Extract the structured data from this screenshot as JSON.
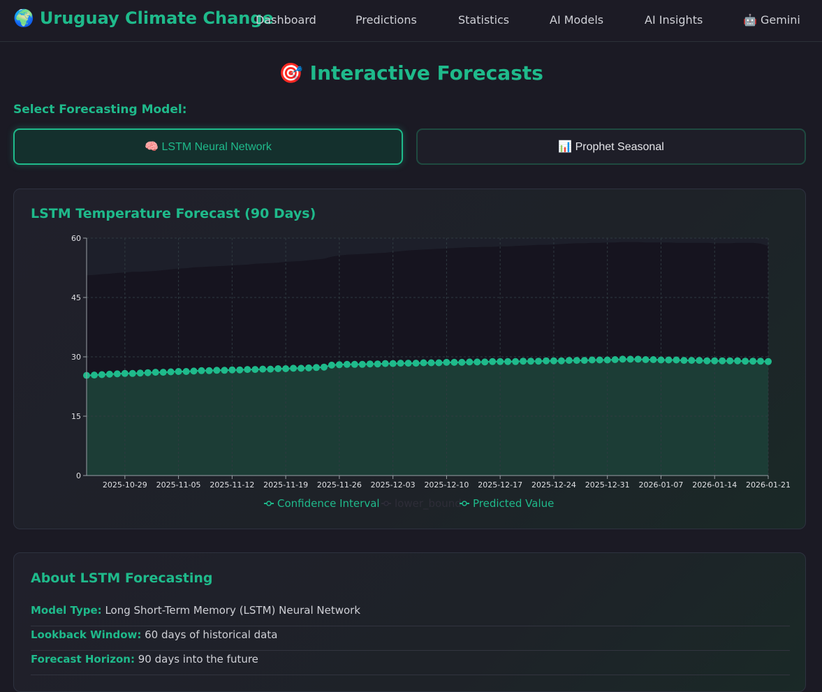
{
  "header": {
    "brand_icon": "🌍",
    "brand_title": "Uruguay Climate Change",
    "nav": [
      {
        "label": "Dashboard"
      },
      {
        "label": "Predictions"
      },
      {
        "label": "Statistics"
      },
      {
        "label": "AI Models"
      },
      {
        "label": "AI Insights"
      },
      {
        "label": "🤖 Gemini"
      }
    ]
  },
  "page": {
    "title": "🎯 Interactive Forecasts",
    "select_label": "Select Forecasting Model:",
    "models": [
      {
        "label": "🧠 LSTM Neural Network",
        "active": true
      },
      {
        "label": "📊 Prophet Seasonal",
        "active": false
      }
    ]
  },
  "chart_card": {
    "title": "LSTM Temperature Forecast (90 Days)"
  },
  "chart_data": {
    "type": "area",
    "title": "LSTM Temperature Forecast (90 Days)",
    "ylim": [
      0,
      60
    ],
    "yticks": [
      0,
      15,
      30,
      45,
      60
    ],
    "xticks": [
      "2025-10-29",
      "2025-11-05",
      "2025-11-12",
      "2025-11-19",
      "2025-11-26",
      "2025-12-03",
      "2025-12-10",
      "2025-12-17",
      "2025-12-24",
      "2025-12-31",
      "2026-01-07",
      "2026-01-14",
      "2026-01-21"
    ],
    "x_start": "2025-10-24",
    "x_end": "2026-01-21",
    "grid": true,
    "legend_position": "bottom",
    "legend": [
      {
        "name": "Confidence Interval",
        "color": "#1fba8b",
        "active": true
      },
      {
        "name": "lower_bound",
        "color": "#2a2a33",
        "active": false
      },
      {
        "name": "Predicted Value",
        "color": "#1fba8b",
        "active": true
      }
    ],
    "series": [
      {
        "name": "Confidence Interval",
        "values": [
          50.6,
          50.7,
          50.9,
          51.0,
          51.2,
          51.3,
          51.5,
          51.5,
          51.6,
          51.7,
          51.9,
          52.1,
          52.3,
          52.4,
          52.6,
          52.7,
          52.8,
          52.9,
          53.0,
          53.1,
          53.2,
          53.3,
          53.5,
          53.6,
          53.7,
          53.8,
          54.0,
          54.1,
          54.2,
          54.4,
          54.6,
          54.8,
          55.3,
          55.6,
          55.8,
          55.9,
          56.0,
          56.1,
          56.2,
          56.3,
          56.5,
          56.7,
          56.9,
          57.0,
          57.1,
          57.2,
          57.3,
          57.4,
          57.5,
          57.6,
          57.7,
          57.7,
          57.8,
          57.8,
          57.9,
          57.9,
          58.0,
          58.1,
          58.2,
          58.3,
          58.3,
          58.4,
          58.5,
          58.6,
          58.7,
          58.7,
          58.8,
          58.8,
          58.9,
          58.9,
          59.0,
          59.0,
          59.0,
          58.9,
          58.9,
          58.9,
          58.9,
          58.8,
          58.8,
          58.8,
          58.8,
          58.8,
          58.7,
          58.7,
          58.7,
          58.8,
          58.8,
          58.8,
          58.6,
          58.0
        ]
      },
      {
        "name": "Predicted Value",
        "values": [
          25.3,
          25.4,
          25.5,
          25.6,
          25.7,
          25.8,
          25.8,
          25.9,
          26.0,
          26.1,
          26.1,
          26.2,
          26.3,
          26.3,
          26.4,
          26.5,
          26.5,
          26.6,
          26.6,
          26.7,
          26.7,
          26.8,
          26.8,
          26.9,
          26.9,
          27.0,
          27.0,
          27.1,
          27.1,
          27.2,
          27.3,
          27.4,
          27.9,
          28.0,
          28.1,
          28.1,
          28.1,
          28.2,
          28.2,
          28.3,
          28.3,
          28.4,
          28.4,
          28.4,
          28.5,
          28.5,
          28.5,
          28.6,
          28.6,
          28.6,
          28.7,
          28.7,
          28.7,
          28.8,
          28.8,
          28.8,
          28.8,
          28.9,
          28.9,
          28.9,
          29.0,
          29.0,
          29.0,
          29.1,
          29.1,
          29.1,
          29.2,
          29.2,
          29.2,
          29.3,
          29.4,
          29.4,
          29.4,
          29.3,
          29.3,
          29.2,
          29.2,
          29.2,
          29.1,
          29.1,
          29.1,
          29.0,
          29.0,
          29.0,
          29.0,
          29.0,
          28.9,
          28.9,
          28.9,
          28.8
        ]
      }
    ]
  },
  "about": {
    "title": "About LSTM Forecasting",
    "rows": [
      {
        "key": "Model Type:",
        "value": "Long Short-Term Memory (LSTM) Neural Network"
      },
      {
        "key": "Lookback Window:",
        "value": "60 days of historical data"
      },
      {
        "key": "Forecast Horizon:",
        "value": "90 days into the future"
      }
    ]
  }
}
